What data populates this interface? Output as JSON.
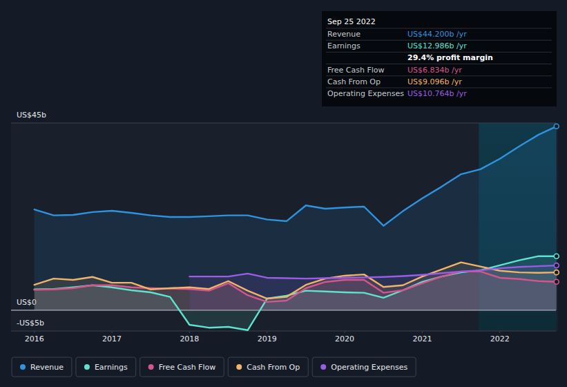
{
  "chart_data": {
    "type": "line",
    "x": [
      2016.0,
      2016.25,
      2016.5,
      2016.75,
      2017.0,
      2017.25,
      2017.5,
      2017.75,
      2018.0,
      2018.25,
      2018.5,
      2018.75,
      2019.0,
      2019.25,
      2019.5,
      2019.75,
      2020.0,
      2020.25,
      2020.5,
      2020.75,
      2021.0,
      2021.25,
      2021.5,
      2021.75,
      2022.0,
      2022.25,
      2022.5,
      2022.73
    ],
    "series": [
      {
        "name": "Revenue",
        "color": "#2f93e0",
        "values": [
          24.2,
          22.8,
          22.9,
          23.6,
          23.9,
          23.4,
          22.8,
          22.4,
          22.4,
          22.6,
          22.8,
          22.8,
          21.8,
          21.4,
          25.2,
          24.4,
          24.7,
          24.9,
          20.3,
          23.8,
          26.9,
          29.7,
          32.7,
          33.9,
          36.4,
          39.4,
          42.2,
          44.2
        ]
      },
      {
        "name": "Earnings",
        "color": "#5fe3cf",
        "values": [
          5.0,
          5.1,
          5.5,
          6.0,
          5.5,
          4.8,
          4.3,
          3.2,
          -3.5,
          -4.2,
          -4.0,
          -4.8,
          2.8,
          3.5,
          4.7,
          4.5,
          4.3,
          4.2,
          3.0,
          4.8,
          6.8,
          8.1,
          9.1,
          9.6,
          10.8,
          12.0,
          13.0,
          12.986
        ]
      },
      {
        "name": "Free Cash Flow",
        "color": "#d6558b",
        "values": [
          4.9,
          5.0,
          5.3,
          6.0,
          6.0,
          5.5,
          5.3,
          5.2,
          5.1,
          4.7,
          6.5,
          3.6,
          2.0,
          2.3,
          5.3,
          6.8,
          7.3,
          7.3,
          4.2,
          4.8,
          6.5,
          8.1,
          9.3,
          9.3,
          7.8,
          7.5,
          7.0,
          6.834
        ]
      },
      {
        "name": "Cash From Op",
        "color": "#f2b36a",
        "values": [
          6.1,
          7.6,
          7.3,
          8.0,
          6.6,
          6.6,
          5.0,
          5.3,
          5.5,
          5.1,
          7.0,
          4.7,
          2.8,
          3.2,
          6.1,
          7.6,
          8.3,
          8.6,
          5.6,
          6.0,
          8.1,
          9.8,
          11.5,
          10.5,
          9.5,
          9.1,
          9.0,
          9.096
        ]
      },
      {
        "name": "Operating Expenses",
        "color": "#9b5de5",
        "values": [
          null,
          null,
          null,
          null,
          null,
          null,
          null,
          null,
          8.1,
          8.1,
          8.1,
          8.8,
          7.8,
          7.7,
          7.6,
          7.7,
          7.8,
          7.9,
          8.0,
          8.2,
          8.5,
          8.9,
          9.3,
          9.6,
          10.1,
          10.4,
          10.6,
          10.764
        ]
      }
    ],
    "xlim": [
      2015.7,
      2022.75
    ],
    "xticks": [
      2016,
      2017,
      2018,
      2019,
      2020,
      2021,
      2022
    ],
    "ylim": [
      -5,
      45
    ],
    "yticks": [
      {
        "value": -5,
        "label": "-US$5b"
      },
      {
        "value": 0,
        "label": "US$0"
      },
      {
        "value": 45,
        "label": "US$45b"
      }
    ],
    "grid": true,
    "legend": "bottom",
    "annotations": {
      "date": "Sep 25 2022",
      "rows": [
        {
          "label": "Revenue",
          "text": "US$44.200b /yr"
        },
        {
          "label": "Earnings",
          "text": "US$12.986b /yr"
        },
        {
          "label": null,
          "text": "29.4% profit margin"
        },
        {
          "label": "Free Cash Flow",
          "text": "US$6.834b /yr"
        },
        {
          "label": "Cash From Op",
          "text": "US$9.096b /yr"
        },
        {
          "label": "Operating Expenses",
          "text": "US$10.764b /yr"
        }
      ]
    }
  }
}
